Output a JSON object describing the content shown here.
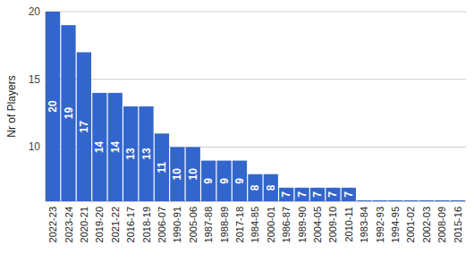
{
  "chart_data": {
    "type": "bar",
    "y_label": "Nr of Players",
    "categories": [
      "2022-23",
      "2023-24",
      "2020-21",
      "2019-20",
      "2021-22",
      "2016-17",
      "2018-19",
      "2006-07",
      "1990-91",
      "2005-06",
      "1987-88",
      "1988-89",
      "2017-18",
      "1984-85",
      "2000-01",
      "1986-87",
      "1989-90",
      "2004-05",
      "2009-10",
      "2010-11",
      "1983-84",
      "1992-93",
      "1994-95",
      "2001-02",
      "2002-03",
      "2008-09",
      "2015-16"
    ],
    "values": [
      20,
      19,
      17,
      14,
      14,
      13,
      13,
      11,
      10,
      10,
      9,
      9,
      9,
      8,
      8,
      7,
      7,
      7,
      7,
      7,
      6,
      6,
      6,
      6,
      6,
      6,
      6
    ],
    "color": "#3366cc",
    "ylim": [
      6,
      20
    ],
    "yticks": [
      10,
      15,
      20
    ],
    "grid": true,
    "data_labels": true
  }
}
